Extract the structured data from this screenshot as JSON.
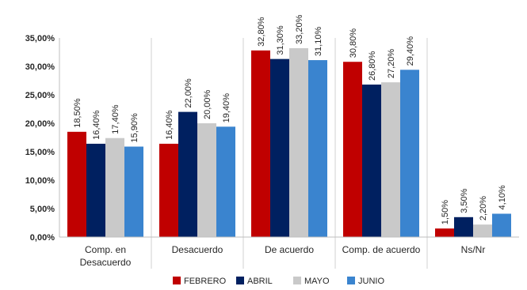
{
  "chart_data": {
    "type": "bar",
    "title": "",
    "xlabel": "",
    "ylabel": "",
    "ylim": [
      0,
      35
    ],
    "yticks": [
      0,
      5,
      10,
      15,
      20,
      25,
      30,
      35
    ],
    "ytick_labels": [
      "0,00%",
      "5,00%",
      "10,00%",
      "15,00%",
      "20,00%",
      "25,00%",
      "30,00%",
      "35,00%"
    ],
    "grid": false,
    "legend_position": "bottom",
    "categories": [
      [
        "Comp. en",
        "Desacuerdo"
      ],
      [
        "Desacuerdo"
      ],
      [
        "De acuerdo"
      ],
      [
        "Comp. de acuerdo"
      ],
      [
        "Ns/Nr"
      ]
    ],
    "series": [
      {
        "name": "FEBRERO",
        "color": "#c00000",
        "values": [
          18.5,
          16.4,
          32.8,
          30.8,
          1.5
        ],
        "labels": [
          "18,50%",
          "16,40%",
          "32,80%",
          "30,80%",
          "1,50%"
        ]
      },
      {
        "name": "ABRIL",
        "color": "#002060",
        "values": [
          16.4,
          22.0,
          31.3,
          26.8,
          3.5
        ],
        "labels": [
          "16,40%",
          "22,00%",
          "31,30%",
          "26,80%",
          "3,50%"
        ]
      },
      {
        "name": "MAYO",
        "color": "#c9c9c9",
        "values": [
          17.4,
          20.0,
          33.2,
          27.2,
          2.2
        ],
        "labels": [
          "17,40%",
          "20,00%",
          "33,20%",
          "27,20%",
          "2,20%"
        ]
      },
      {
        "name": "JUNIO",
        "color": "#3a84cf",
        "values": [
          15.9,
          19.4,
          31.1,
          29.4,
          4.1
        ],
        "labels": [
          "15,90%",
          "19,40%",
          "31,10%",
          "29,40%",
          "4,10%"
        ]
      }
    ]
  }
}
